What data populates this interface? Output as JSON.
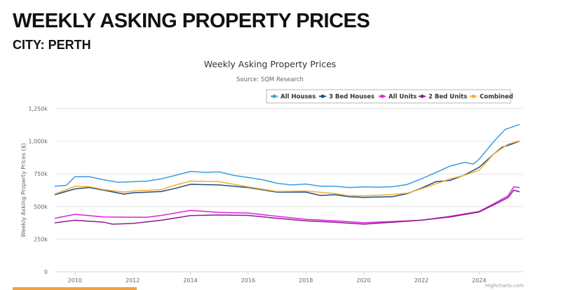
{
  "page": {
    "heading": "WEEKLY ASKING PROPERTY PRICES",
    "subheading": "CITY: PERTH"
  },
  "chart_data": {
    "type": "line",
    "title": "Weekly Asking Property Prices",
    "subtitle": "Source: SQM Research",
    "ylabel": "Weekly Asking Property Prices ($)",
    "xlabel": "",
    "credit": "Highcharts.com",
    "xlim": [
      2009.3,
      2025.5
    ],
    "ylim": [
      0,
      1250000
    ],
    "xticks": [
      "2010",
      "2012",
      "2014",
      "2016",
      "2018",
      "2020",
      "2022",
      "2024"
    ],
    "yticks": [
      "0",
      "250k",
      "500k",
      "750k",
      "1,000k",
      "1,250k"
    ],
    "grid": true,
    "legend_position": "top-right",
    "series": [
      {
        "name": "All Houses",
        "color": "#3a9ee0",
        "points": [
          [
            2009.3,
            655
          ],
          [
            2009.7,
            662
          ],
          [
            2010,
            728
          ],
          [
            2010.5,
            728
          ],
          [
            2011,
            705
          ],
          [
            2011.5,
            685
          ],
          [
            2012,
            690
          ],
          [
            2012.5,
            695
          ],
          [
            2013,
            712
          ],
          [
            2013.5,
            740
          ],
          [
            2014,
            768
          ],
          [
            2014.5,
            762
          ],
          [
            2015,
            765
          ],
          [
            2015.5,
            738
          ],
          [
            2016,
            722
          ],
          [
            2016.5,
            705
          ],
          [
            2017,
            678
          ],
          [
            2017.5,
            665
          ],
          [
            2018,
            672
          ],
          [
            2018.5,
            655
          ],
          [
            2019,
            655
          ],
          [
            2019.5,
            645
          ],
          [
            2020,
            650
          ],
          [
            2020.5,
            648
          ],
          [
            2021,
            652
          ],
          [
            2021.5,
            668
          ],
          [
            2022,
            712
          ],
          [
            2022.5,
            760
          ],
          [
            2023,
            810
          ],
          [
            2023.5,
            838
          ],
          [
            2023.8,
            825
          ],
          [
            2024,
            862
          ],
          [
            2024.5,
            995
          ],
          [
            2024.9,
            1090
          ],
          [
            2025.4,
            1128
          ]
        ]
      },
      {
        "name": "3 Bed Houses",
        "color": "#1f4e7a",
        "points": [
          [
            2009.3,
            590
          ],
          [
            2010,
            635
          ],
          [
            2010.5,
            645
          ],
          [
            2011,
            625
          ],
          [
            2011.7,
            595
          ],
          [
            2012,
            605
          ],
          [
            2013,
            615
          ],
          [
            2013.5,
            640
          ],
          [
            2014,
            670
          ],
          [
            2015,
            665
          ],
          [
            2016,
            645
          ],
          [
            2017,
            610
          ],
          [
            2018,
            610
          ],
          [
            2018.5,
            585
          ],
          [
            2019,
            590
          ],
          [
            2019.5,
            575
          ],
          [
            2020,
            570
          ],
          [
            2021,
            575
          ],
          [
            2021.5,
            598
          ],
          [
            2022,
            640
          ],
          [
            2022.5,
            690
          ],
          [
            2023,
            700
          ],
          [
            2023.5,
            742
          ],
          [
            2024,
            800
          ],
          [
            2024.5,
            900
          ],
          [
            2024.8,
            955
          ],
          [
            2025,
            968
          ],
          [
            2025.4,
            1000
          ]
        ]
      },
      {
        "name": "All Units",
        "color": "#e020e0",
        "points": [
          [
            2009.3,
            410
          ],
          [
            2010,
            440
          ],
          [
            2011,
            420
          ],
          [
            2012,
            418
          ],
          [
            2012.5,
            418
          ],
          [
            2013,
            432
          ],
          [
            2014,
            470
          ],
          [
            2015,
            455
          ],
          [
            2016,
            450
          ],
          [
            2017,
            425
          ],
          [
            2018,
            402
          ],
          [
            2019,
            390
          ],
          [
            2020,
            376
          ],
          [
            2021,
            385
          ],
          [
            2022,
            395
          ],
          [
            2023,
            425
          ],
          [
            2024,
            462
          ],
          [
            2024.5,
            520
          ],
          [
            2025,
            582
          ],
          [
            2025.2,
            650
          ],
          [
            2025.4,
            645
          ]
        ]
      },
      {
        "name": "2 Bed Units",
        "color": "#8a1c8a",
        "points": [
          [
            2009.3,
            375
          ],
          [
            2010,
            395
          ],
          [
            2011,
            380
          ],
          [
            2011.3,
            365
          ],
          [
            2012,
            370
          ],
          [
            2013,
            395
          ],
          [
            2014,
            430
          ],
          [
            2015,
            435
          ],
          [
            2016,
            432
          ],
          [
            2017,
            410
          ],
          [
            2018,
            390
          ],
          [
            2019,
            380
          ],
          [
            2020,
            365
          ],
          [
            2021,
            380
          ],
          [
            2022,
            395
          ],
          [
            2023,
            420
          ],
          [
            2024,
            458
          ],
          [
            2024.5,
            512
          ],
          [
            2025,
            568
          ],
          [
            2025.2,
            625
          ],
          [
            2025.4,
            612
          ]
        ]
      },
      {
        "name": "Combined",
        "color": "#f0b030",
        "points": [
          [
            2009.3,
            595
          ],
          [
            2010,
            655
          ],
          [
            2010.5,
            652
          ],
          [
            2011,
            630
          ],
          [
            2011.7,
            610
          ],
          [
            2012,
            618
          ],
          [
            2013,
            630
          ],
          [
            2013.5,
            665
          ],
          [
            2014,
            695
          ],
          [
            2015,
            690
          ],
          [
            2016,
            650
          ],
          [
            2017,
            615
          ],
          [
            2018,
            618
          ],
          [
            2019,
            600
          ],
          [
            2019.5,
            582
          ],
          [
            2020,
            582
          ],
          [
            2021,
            592
          ],
          [
            2021.5,
            602
          ],
          [
            2022,
            635
          ],
          [
            2023,
            712
          ],
          [
            2023.5,
            740
          ],
          [
            2024,
            778
          ],
          [
            2024.5,
            900
          ],
          [
            2025,
            978
          ],
          [
            2025.4,
            1002
          ]
        ]
      }
    ],
    "y_unit": "thousand $"
  }
}
